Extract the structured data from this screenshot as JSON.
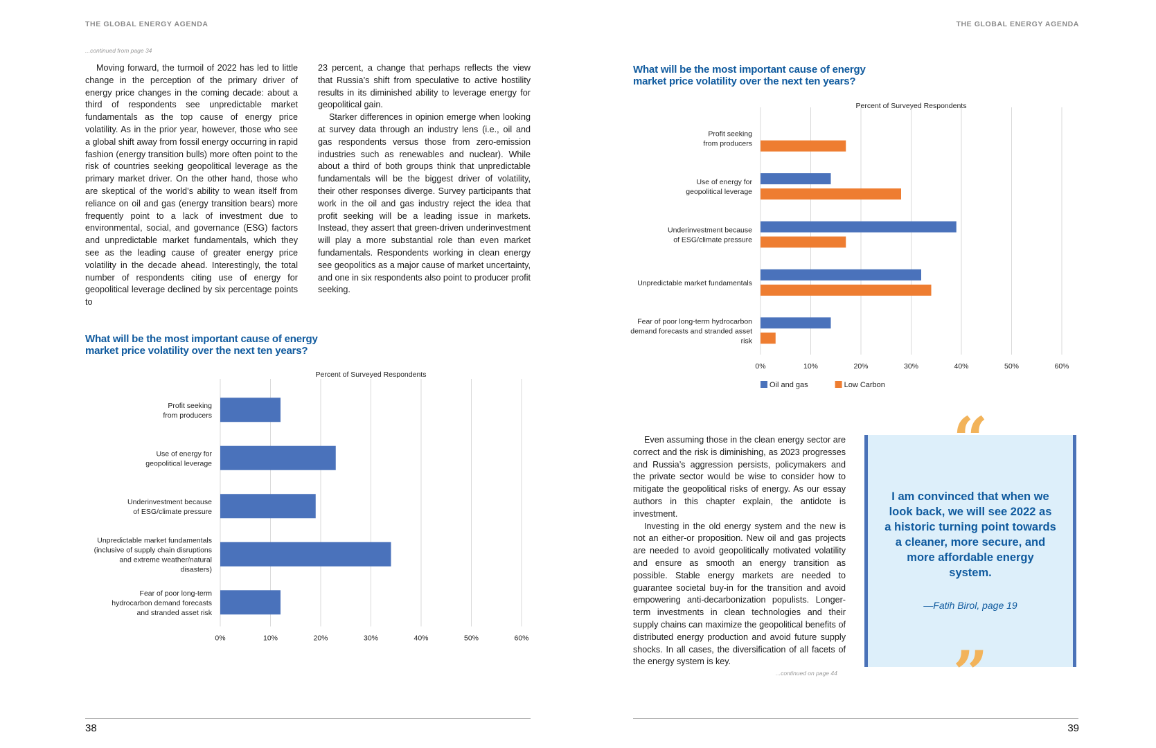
{
  "left_page": {
    "running_head": "THE GLOBAL ENERGY AGENDA",
    "continued_from": "...continued from page 34",
    "column1": [
      "Moving forward, the turmoil of 2022 has led to little change in the perception of the primary driver of energy price changes in the coming decade: about a third of respondents see unpredictable market fundamentals as the top cause of energy price volatility. As in the prior year, however, those who see a global shift away from fossil energy occurring in rapid fashion (energy transition bulls) more often point to the risk of countries seeking geopolitical leverage as the primary market driver. On the other hand, those who are skeptical of the world’s ability to wean itself from reliance on oil and gas (energy transition bears) more frequently point to a lack of investment due to environmental, social, and governance (ESG) factors and unpredictable market fundamentals, which they see as the leading cause of greater energy price volatility in the decade ahead. Interestingly, the total number of respondents citing use of energy for geopolitical leverage declined by six percentage points to"
    ],
    "column2": [
      "23 percent, a change that perhaps reflects the view that Russia’s shift from speculative to active hostility results in its diminished ability to leverage energy for geopolitical gain.",
      "Starker differences in opinion emerge when looking at survey data through an industry lens (i.e., oil and gas respondents versus those from zero-emission industries such as renewables and nuclear). While about a third of both groups think that unpredictable fundamentals will be the biggest driver of volatility, their other responses diverge. Survey participants that work in the oil and gas industry reject the idea that profit seeking will be a leading issue in markets. Instead, they assert that green-driven underinvestment will play a more substantial role than even market fundamentals. Respondents working in clean energy see geopolitics as a major cause of market uncertainty, and one in six respondents also point to producer profit seeking."
    ],
    "page_number": "38"
  },
  "right_page": {
    "running_head": "THE GLOBAL ENERGY AGENDA",
    "column": [
      "Even assuming those in the clean energy sector are correct and the risk is diminishing, as 2023 progresses and Russia’s aggression persists, policymakers and the private sector would be wise to consider how to mitigate the geopolitical risks of energy. As our essay authors in this chapter explain, the antidote is investment.",
      "Investing in the old energy system and the new is not an either-or proposition. New oil and gas projects are needed to avoid geopolitically motivated volatility and ensure as smooth an energy transition as possible. Stable energy markets are needed to guarantee societal buy-in for the transition and avoid empowering anti-decarbonization populists. Longer-term investments in clean technologies and their supply chains can maximize the geopolitical benefits of distributed energy production and avoid future supply shocks. In all cases, the diversification of all facets of the energy system is key."
    ],
    "continued_on": "...continued on page 44",
    "quote": {
      "open_mark": "“",
      "close_mark": "”",
      "text": "I am convinced that when we look back, we will see 2022 as a historic turning point towards a cleaner, more secure, and more affordable energy system.",
      "attribution": "—Fatih Birol, page 19"
    },
    "page_number": "39"
  },
  "chart_data": [
    {
      "type": "bar",
      "orientation": "horizontal",
      "title": "What will be the most important cause of energy market price volatility over the next ten years?",
      "subtitle": "Percent of Surveyed Respondents",
      "categories": [
        [
          "Profit seeking",
          "from producers"
        ],
        [
          "Use of energy for",
          "geopolitical leverage"
        ],
        [
          "Underinvestment because",
          "of ESG/climate pressure"
        ],
        [
          "Unpredictable market fundamentals",
          "(inclusive of supply chain disruptions",
          "and extreme weather/natural",
          "disasters)"
        ],
        [
          "Fear of poor long-term",
          "hydrocarbon demand forecasts",
          "and stranded asset risk"
        ]
      ],
      "series": [
        {
          "values": [
            12,
            23,
            19,
            34,
            12
          ],
          "color": "#4a72bb"
        }
      ],
      "xlim": [
        0,
        60
      ],
      "xticks": [
        "0%",
        "10%",
        "20%",
        "30%",
        "40%",
        "50%",
        "60%"
      ],
      "grid": true
    },
    {
      "type": "bar",
      "orientation": "horizontal",
      "title": "What will be the most important cause of energy market price volatility over the next ten years?",
      "subtitle": "Percent of Surveyed Respondents",
      "categories": [
        [
          "Profit seeking",
          "from producers"
        ],
        [
          "Use of energy for",
          "geopolitical leverage"
        ],
        [
          "Underinvestment because",
          "of ESG/climate pressure"
        ],
        [
          "Unpredictable market fundamentals"
        ],
        [
          "Fear of poor long-term hydrocarbon",
          "demand forecasts and stranded asset",
          "risk"
        ]
      ],
      "series": [
        {
          "name": "Oil and gas",
          "values": [
            0,
            14,
            39,
            32,
            14
          ],
          "color": "#4a72bb"
        },
        {
          "name": "Low Carbon",
          "values": [
            17,
            28,
            17,
            34,
            3
          ],
          "color": "#ee7d31"
        }
      ],
      "xlim": [
        0,
        60
      ],
      "xticks": [
        "0%",
        "10%",
        "20%",
        "30%",
        "40%",
        "50%",
        "60%"
      ],
      "grid": true,
      "legend": "bottom-left"
    }
  ]
}
